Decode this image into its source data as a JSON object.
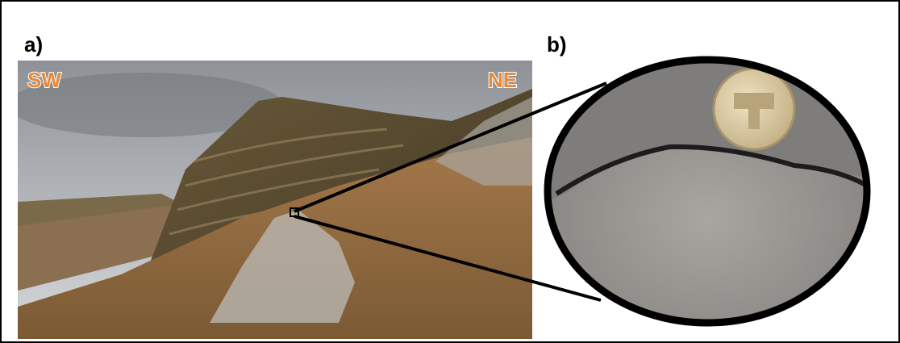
{
  "panels": [
    {
      "label": "a)",
      "annotations": [
        "SW",
        "NE"
      ]
    },
    {
      "label": "b)"
    }
  ]
}
